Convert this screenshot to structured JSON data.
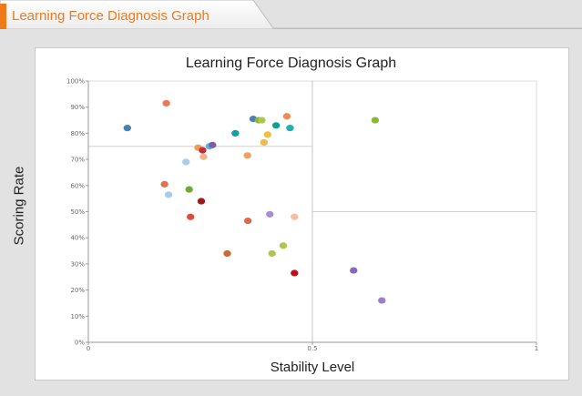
{
  "header": {
    "tab_title": "Learning Force Diagnosis Graph"
  },
  "chart_data": {
    "type": "scatter",
    "title": "Learning Force Diagnosis Graph",
    "xlabel": "Stability Level",
    "ylabel": "Scoring Rate",
    "xlim": [
      0,
      1
    ],
    "ylim": [
      0,
      100
    ],
    "x_ticks": [
      "0",
      "0.5",
      "1"
    ],
    "y_ticks": [
      "0%",
      "10%",
      "20%",
      "30%",
      "40%",
      "50%",
      "60%",
      "70%",
      "80%",
      "90%",
      "100%"
    ],
    "grid": "quadrant lines at x=0.5 and y=50%; vertical plot divider at 0.5",
    "points": [
      {
        "x": 0.087,
        "y": 82,
        "color": "#4a7fb5"
      },
      {
        "x": 0.174,
        "y": 91.5,
        "color": "#e8795a"
      },
      {
        "x": 0.17,
        "y": 60.5,
        "color": "#e07050"
      },
      {
        "x": 0.179,
        "y": 56.5,
        "color": "#a8cde8"
      },
      {
        "x": 0.218,
        "y": 69,
        "color": "#a8cde8"
      },
      {
        "x": 0.225,
        "y": 58.5,
        "color": "#7aa532"
      },
      {
        "x": 0.228,
        "y": 48,
        "color": "#dc4e3c"
      },
      {
        "x": 0.245,
        "y": 74.5,
        "color": "#f09a5a"
      },
      {
        "x": 0.252,
        "y": 54,
        "color": "#9e1a1a"
      },
      {
        "x": 0.257,
        "y": 71,
        "color": "#f2b58a"
      },
      {
        "x": 0.255,
        "y": 73.5,
        "color": "#c0303a"
      },
      {
        "x": 0.27,
        "y": 75,
        "color": "#5ab4d4"
      },
      {
        "x": 0.277,
        "y": 75.5,
        "color": "#7b5ea8"
      },
      {
        "x": 0.31,
        "y": 34,
        "color": "#c86a3a"
      },
      {
        "x": 0.328,
        "y": 80,
        "color": "#0fa0a8"
      },
      {
        "x": 0.355,
        "y": 71.5,
        "color": "#f0a060"
      },
      {
        "x": 0.356,
        "y": 46.5,
        "color": "#e06848"
      },
      {
        "x": 0.368,
        "y": 85.5,
        "color": "#4a80c0"
      },
      {
        "x": 0.38,
        "y": 85,
        "color": "#8ab832"
      },
      {
        "x": 0.387,
        "y": 85,
        "color": "#a8c850"
      },
      {
        "x": 0.392,
        "y": 76.5,
        "color": "#f0b850"
      },
      {
        "x": 0.4,
        "y": 79.5,
        "color": "#f0c040"
      },
      {
        "x": 0.405,
        "y": 49,
        "color": "#a890d0"
      },
      {
        "x": 0.41,
        "y": 34,
        "color": "#a8c850"
      },
      {
        "x": 0.419,
        "y": 83,
        "color": "#0fa090"
      },
      {
        "x": 0.435,
        "y": 37,
        "color": "#a8c850"
      },
      {
        "x": 0.443,
        "y": 86.5,
        "color": "#f08a50"
      },
      {
        "x": 0.45,
        "y": 82,
        "color": "#20b0b8"
      },
      {
        "x": 0.46,
        "y": 48,
        "color": "#f2c0a0"
      },
      {
        "x": 0.46,
        "y": 26.5,
        "color": "#b8141e"
      },
      {
        "x": 0.592,
        "y": 27.5,
        "color": "#8a68b8"
      },
      {
        "x": 0.64,
        "y": 85,
        "color": "#8ab832"
      },
      {
        "x": 0.655,
        "y": 16,
        "color": "#9a80c8"
      }
    ]
  }
}
